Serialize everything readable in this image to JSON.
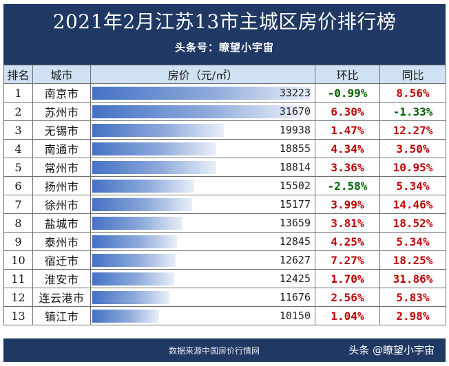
{
  "header": {
    "title": "2021年2月江苏13市主城区房价排行榜",
    "subtitle": "头条号：瞭望小宇宙"
  },
  "colors": {
    "header_bg": "#1f3864",
    "column_header_bg": "#cfe1f3",
    "positive": "#c00000",
    "negative": "#006100",
    "bar": "#4472c4"
  },
  "chart_data": {
    "type": "table",
    "title": "2021年2月江苏13市主城区房价排行榜",
    "columns": [
      "排名",
      "城市",
      "房价（元/㎡）",
      "环比",
      "同比"
    ],
    "price_bar_max": 33223,
    "rows": [
      {
        "rank": "1",
        "city": "南京市",
        "price": 33223,
        "mom": "-0.99%",
        "yoy": "8.56%"
      },
      {
        "rank": "2",
        "city": "苏州市",
        "price": 31670,
        "mom": "6.30%",
        "yoy": "-1.33%"
      },
      {
        "rank": "3",
        "city": "无锡市",
        "price": 19938,
        "mom": "1.47%",
        "yoy": "12.27%"
      },
      {
        "rank": "4",
        "city": "南通市",
        "price": 18855,
        "mom": "4.34%",
        "yoy": "3.50%"
      },
      {
        "rank": "5",
        "city": "常州市",
        "price": 18814,
        "mom": "3.36%",
        "yoy": "10.95%"
      },
      {
        "rank": "6",
        "city": "扬州市",
        "price": 15502,
        "mom": "-2.58%",
        "yoy": "5.34%"
      },
      {
        "rank": "7",
        "city": "徐州市",
        "price": 15177,
        "mom": "3.99%",
        "yoy": "14.46%"
      },
      {
        "rank": "8",
        "city": "盐城市",
        "price": 13659,
        "mom": "3.81%",
        "yoy": "18.52%"
      },
      {
        "rank": "9",
        "city": "泰州市",
        "price": 12845,
        "mom": "4.25%",
        "yoy": "5.34%"
      },
      {
        "rank": "10",
        "city": "宿迁市",
        "price": 12627,
        "mom": "7.27%",
        "yoy": "18.25%"
      },
      {
        "rank": "11",
        "city": "淮安市",
        "price": 12425,
        "mom": "1.70%",
        "yoy": "31.86%"
      },
      {
        "rank": "12",
        "city": "连云港市",
        "price": 11676,
        "mom": "2.56%",
        "yoy": "5.83%"
      },
      {
        "rank": "13",
        "city": "镇江市",
        "price": 10150,
        "mom": "1.04%",
        "yoy": "2.98%"
      }
    ]
  },
  "footer": {
    "source": "数据来源中国房价行情网",
    "watermark": "头条 @瞭望小宇宙"
  }
}
